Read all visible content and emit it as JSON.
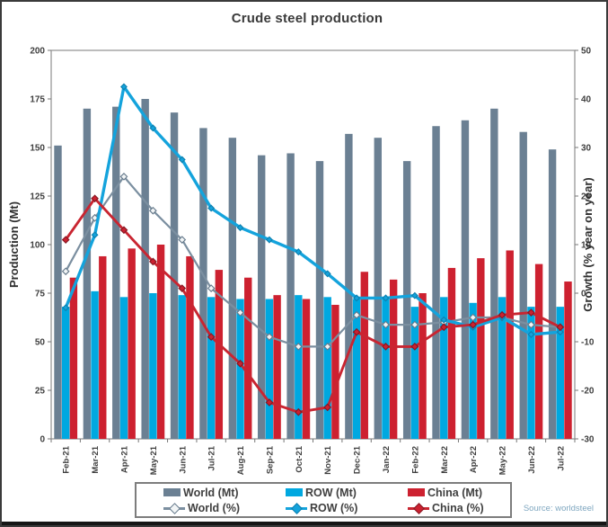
{
  "title": "Crude steel production",
  "source": "Source: worldsteel",
  "chart_data": {
    "type": "combo-bar-line",
    "title": "Crude steel production",
    "x_labels": [
      "Feb-21",
      "Mar-21",
      "Apr-21",
      "May-21",
      "Jun-21",
      "Jul-21",
      "Aug-21",
      "Sep-21",
      "Oct-21",
      "Nov-21",
      "Dec-21",
      "Jan-22",
      "Feb-22",
      "Mar-22",
      "Apr-22",
      "May-22",
      "Jun-22",
      "Jul-22"
    ],
    "left_axis": {
      "title": "Production (Mt)",
      "min": 0,
      "max": 200,
      "step": 25,
      "tick_labels": [
        "0",
        "25",
        "50",
        "75",
        "100",
        "125",
        "150",
        "175",
        "200"
      ]
    },
    "right_axis": {
      "title": "Growth (% year on year)",
      "min": -30,
      "max": 50,
      "step": 10,
      "tick_labels": [
        "-30",
        "-20",
        "-10",
        "0",
        "10",
        "20",
        "30",
        "40",
        "50"
      ]
    },
    "grid": "off",
    "legend_position": "bottom",
    "bar_series": [
      {
        "name": "World (Mt)",
        "color": "#6b8093",
        "values": [
          151,
          170,
          171,
          175,
          168,
          160,
          155,
          146,
          147,
          143,
          157,
          155,
          143,
          161,
          164,
          170,
          158,
          149
        ]
      },
      {
        "name": "ROW (Mt)",
        "color": "#00a8e0",
        "values": [
          68,
          76,
          73,
          75,
          74,
          73,
          72,
          72,
          74,
          73,
          72,
          72,
          68,
          73,
          70,
          73,
          68,
          68
        ]
      },
      {
        "name": "China (Mt)",
        "color": "#cd2130",
        "values": [
          83,
          94,
          98,
          100,
          94,
          87,
          83,
          74,
          72,
          69,
          86,
          82,
          75,
          88,
          93,
          97,
          90,
          81
        ]
      }
    ],
    "line_series": [
      {
        "name": "World (%)",
        "color": "#7b8fa0",
        "marker_fill": "#f2f5f6",
        "marker_stroke": "#64788a",
        "values": [
          4.5,
          15.5,
          24,
          17,
          11,
          1,
          -4,
          -9,
          -11,
          -11,
          -4.5,
          -6.5,
          -6.5,
          -6,
          -5,
          -5,
          -6.5,
          -7
        ]
      },
      {
        "name": "ROW (%)",
        "color": "#14a3dc",
        "marker_fill": "#14a3dc",
        "marker_stroke": "#0c7fae",
        "values": [
          -3,
          12,
          42.5,
          34,
          27.5,
          17.5,
          13.5,
          11,
          8.5,
          4,
          -1,
          -1,
          -0.5,
          -5.5,
          -7,
          -5,
          -8.5,
          -8
        ]
      },
      {
        "name": "China (%)",
        "color": "#c92531",
        "marker_fill": "#cb2130",
        "marker_stroke": "#841722",
        "values": [
          11,
          19.5,
          13,
          6.5,
          1,
          -9,
          -14.5,
          -22.5,
          -24.5,
          -23.5,
          -8,
          -11,
          -11,
          -7,
          -6.5,
          -4.5,
          -4,
          -7
        ]
      }
    ]
  }
}
